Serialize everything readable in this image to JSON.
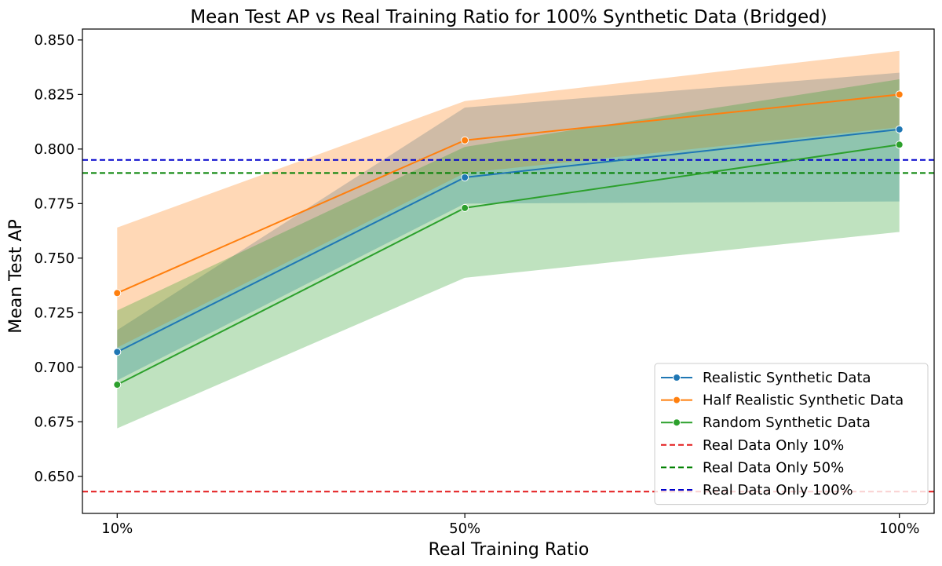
{
  "chart_data": {
    "type": "line",
    "title": "Mean Test AP vs Real Training Ratio for 100% Synthetic Data (Bridged)",
    "xlabel": "Real Training Ratio",
    "ylabel": "Mean Test AP",
    "categories": [
      "10%",
      "50%",
      "100%"
    ],
    "x": [
      10,
      50,
      100
    ],
    "xlim": [
      6,
      104
    ],
    "ylim": [
      0.633,
      0.855
    ],
    "yticks": [
      0.65,
      0.675,
      0.7,
      0.725,
      0.75,
      0.775,
      0.8,
      0.825,
      0.85
    ],
    "ytick_labels": [
      "0.650",
      "0.675",
      "0.700",
      "0.725",
      "0.750",
      "0.775",
      "0.800",
      "0.825",
      "0.850"
    ],
    "grid": false,
    "legend_position": "bottom-right",
    "series": [
      {
        "name": "Realistic Synthetic Data",
        "color": "#1f77b4",
        "values": [
          0.707,
          0.787,
          0.809
        ],
        "lower": [
          0.694,
          0.775,
          0.776
        ],
        "upper": [
          0.717,
          0.819,
          0.835
        ]
      },
      {
        "name": "Half Realistic Synthetic Data",
        "color": "#ff7f0e",
        "values": [
          0.734,
          0.804,
          0.825
        ],
        "lower": [
          0.709,
          0.789,
          0.81
        ],
        "upper": [
          0.764,
          0.822,
          0.845
        ]
      },
      {
        "name": "Random Synthetic Data",
        "color": "#2ca02c",
        "values": [
          0.692,
          0.773,
          0.802
        ],
        "lower": [
          0.672,
          0.741,
          0.762
        ],
        "upper": [
          0.726,
          0.801,
          0.832
        ]
      }
    ],
    "reference_lines": [
      {
        "name": "Real Data Only 10%",
        "color": "#e41a1c",
        "value": 0.643
      },
      {
        "name": "Real Data Only 50%",
        "color": "#008000",
        "value": 0.789
      },
      {
        "name": "Real Data Only 100%",
        "color": "#0000cc",
        "value": 0.795
      }
    ]
  }
}
